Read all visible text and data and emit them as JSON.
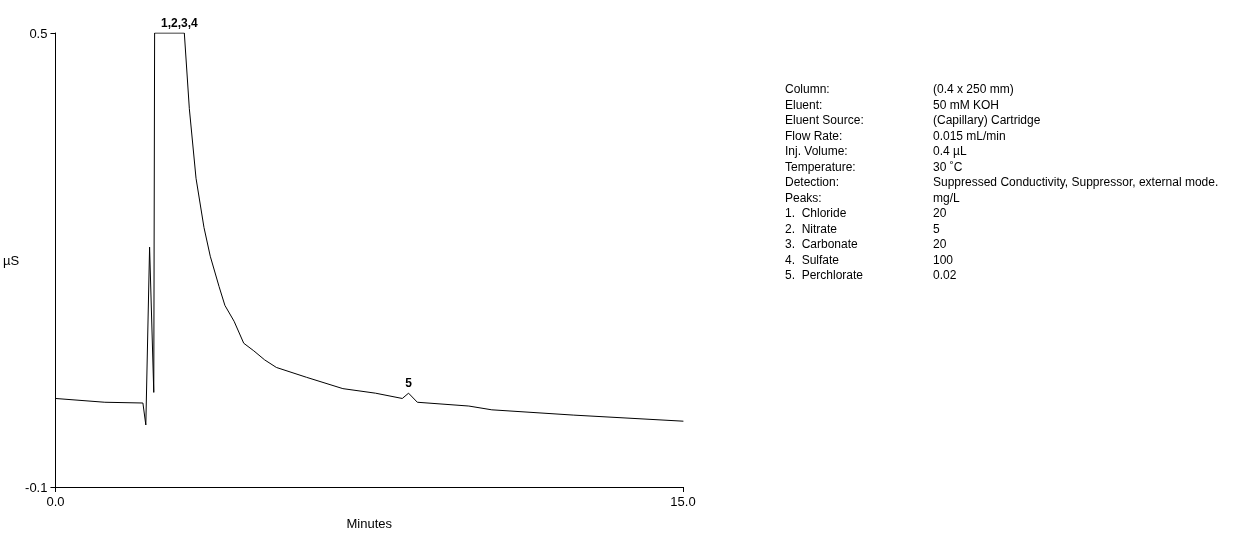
{
  "chart_data": {
    "type": "line",
    "xlabel": "Minutes",
    "ylabel": "µS",
    "x": [
      0,
      1.18,
      2.09,
      2.16,
      2.25,
      2.35,
      2.37,
      3.08,
      3.2,
      3.36,
      3.55,
      3.7,
      3.91,
      4.05,
      4.27,
      4.5,
      4.74,
      5.0,
      5.28,
      6.0,
      6.87,
      7.65,
      8.29,
      8.44,
      8.65,
      9.88,
      10.43,
      12.39,
      15
    ],
    "series": [
      {
        "color": "#000000",
        "values": [
          0.017,
          0.012,
          0.011,
          -0.018,
          0.217,
          0.025,
          0.5,
          0.5,
          0.4,
          0.308,
          0.243,
          0.205,
          0.165,
          0.14,
          0.119,
          0.09,
          0.08,
          0.068,
          0.058,
          0.045,
          0.03,
          0.024,
          0.017,
          0.024,
          0.012,
          0.007,
          0.002,
          -0.005,
          -0.013
        ]
      }
    ],
    "xlim": [
      0,
      15
    ],
    "xticks": [
      {
        "value": 0,
        "label": "0.0"
      },
      {
        "value": 15,
        "label": "15.0"
      }
    ],
    "ylim": [
      -0.1,
      0.5
    ],
    "yticks": [
      -0.1,
      0.5
    ],
    "grid": false,
    "marker": "none",
    "line_style": "solid",
    "annotations": [
      {
        "text": "1,2,3,4",
        "x": 2.96,
        "y": 0.5
      },
      {
        "text": "5",
        "x": 8.44,
        "y": 0.024
      },
      "Column:\t(0.4 x 250 mm)",
      "Eluent:\t50 mM KOH",
      "Eluent Source:\t(Capillary) Cartridge",
      "Flow Rate:\t0.015 mL/min",
      "Inj. Volume:\t0.4 µL",
      "Temperature:\t30 ˚C",
      "Detection:\tSuppressed Conductivity, Suppressor, external mode.",
      "Peaks:\tmg/L",
      "1.  Chloride\t20",
      "2.  Nitrate\t5",
      "3.  Carbonate\t20",
      "4.  Sulfate\t100",
      "5.  Perchlorate\t0.02"
    ]
  }
}
